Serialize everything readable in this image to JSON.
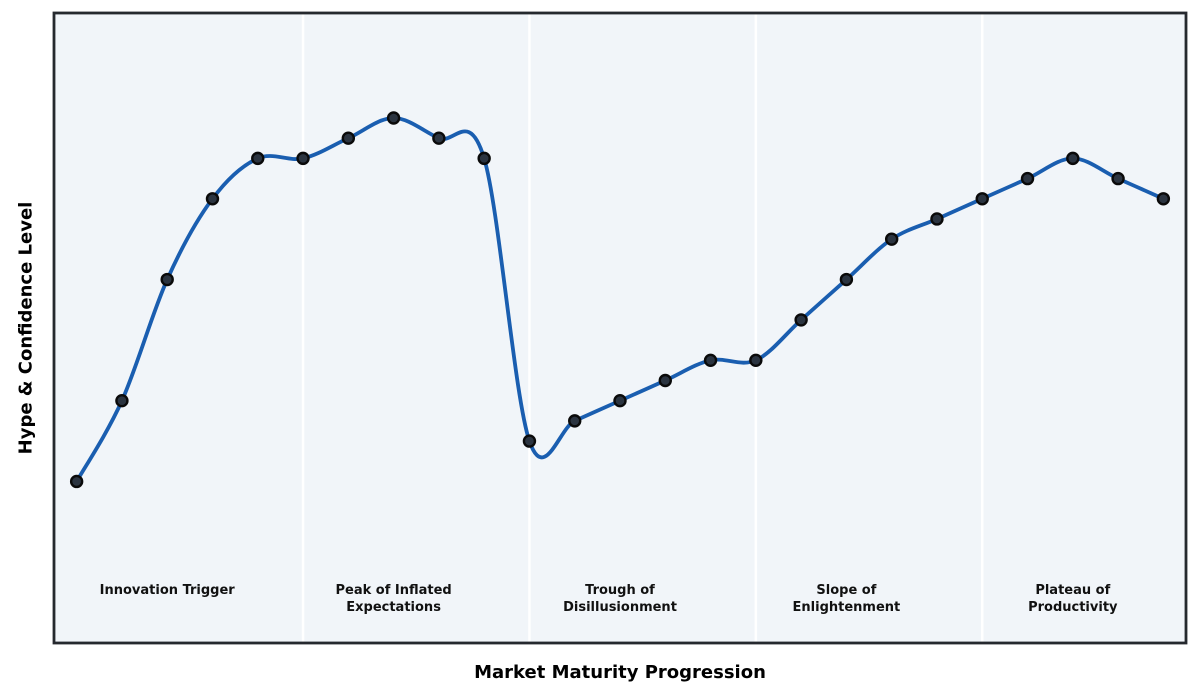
{
  "chart_data": {
    "type": "line",
    "title": "",
    "xlabel": "Market Maturity Progression",
    "ylabel": "Hype & Confidence Level",
    "x": [
      0,
      1,
      2,
      3,
      4,
      5,
      6,
      7,
      8,
      9,
      10,
      11,
      12,
      13,
      14,
      15,
      16,
      17,
      18,
      19,
      20,
      21,
      22,
      23,
      24
    ],
    "values": [
      0,
      20,
      50,
      70,
      80,
      80,
      85,
      90,
      85,
      80,
      10,
      15,
      20,
      25,
      30,
      30,
      40,
      50,
      60,
      65,
      70,
      75,
      80,
      75,
      70
    ],
    "xlim": [
      -0.5,
      24.5
    ],
    "ylim": [
      -40,
      116
    ],
    "grid": false,
    "legend": null,
    "smoothing": "spline",
    "phase_dividers_x": [
      5,
      10,
      15,
      20
    ],
    "phases": [
      {
        "name": "innovation-trigger",
        "center_x": 2,
        "label_lines": [
          "Innovation Trigger"
        ]
      },
      {
        "name": "peak-of-inflated-expectations",
        "center_x": 7,
        "label_lines": [
          "Peak of Inflated",
          "Expectations"
        ]
      },
      {
        "name": "trough-of-disillusionment",
        "center_x": 12,
        "label_lines": [
          "Trough of",
          "Disillusionment"
        ]
      },
      {
        "name": "slope-of-enlightenment",
        "center_x": 17,
        "label_lines": [
          "Slope of",
          "Enlightenment"
        ]
      },
      {
        "name": "plateau-of-productivity",
        "center_x": 22,
        "label_lines": [
          "Plateau of",
          "Productivity"
        ]
      }
    ],
    "colors": {
      "line": "#1a5eb0",
      "marker_fill": "#2b3440",
      "marker_edge": "#0a0a0a",
      "panel_bg": "#f1f5f9",
      "divider": "#ffffff",
      "border": "#25292e",
      "label_text": "#111111"
    }
  }
}
